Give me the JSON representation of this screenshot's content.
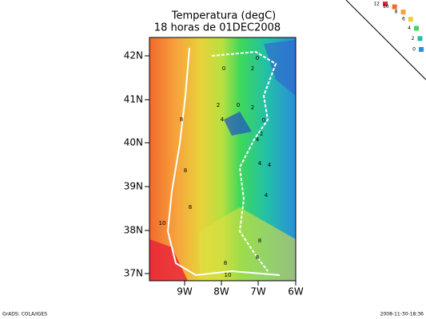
{
  "map": {
    "title": "Temperatura (degC)",
    "subtitle": "18 horas de 01DEC2008",
    "lat_labels": [
      "42N",
      "41N",
      "40N",
      "39N",
      "38N",
      "37N"
    ],
    "lon_labels": [
      "9W",
      "8W",
      "7W",
      "6W"
    ],
    "contour_labels": [
      "8",
      "8",
      "8",
      "10",
      "8",
      "10",
      "8",
      "8",
      "4",
      "4",
      "4",
      "4",
      "2",
      "0",
      "4",
      "2",
      "0",
      "2",
      "0",
      "2",
      "0"
    ],
    "colorbar_labels": [
      "12",
      "10",
      "8",
      "6",
      "4",
      "2",
      "0"
    ],
    "footer_left": "GrADS: COLA/IGES",
    "footer_right": "2008-11-30-18:36"
  }
}
